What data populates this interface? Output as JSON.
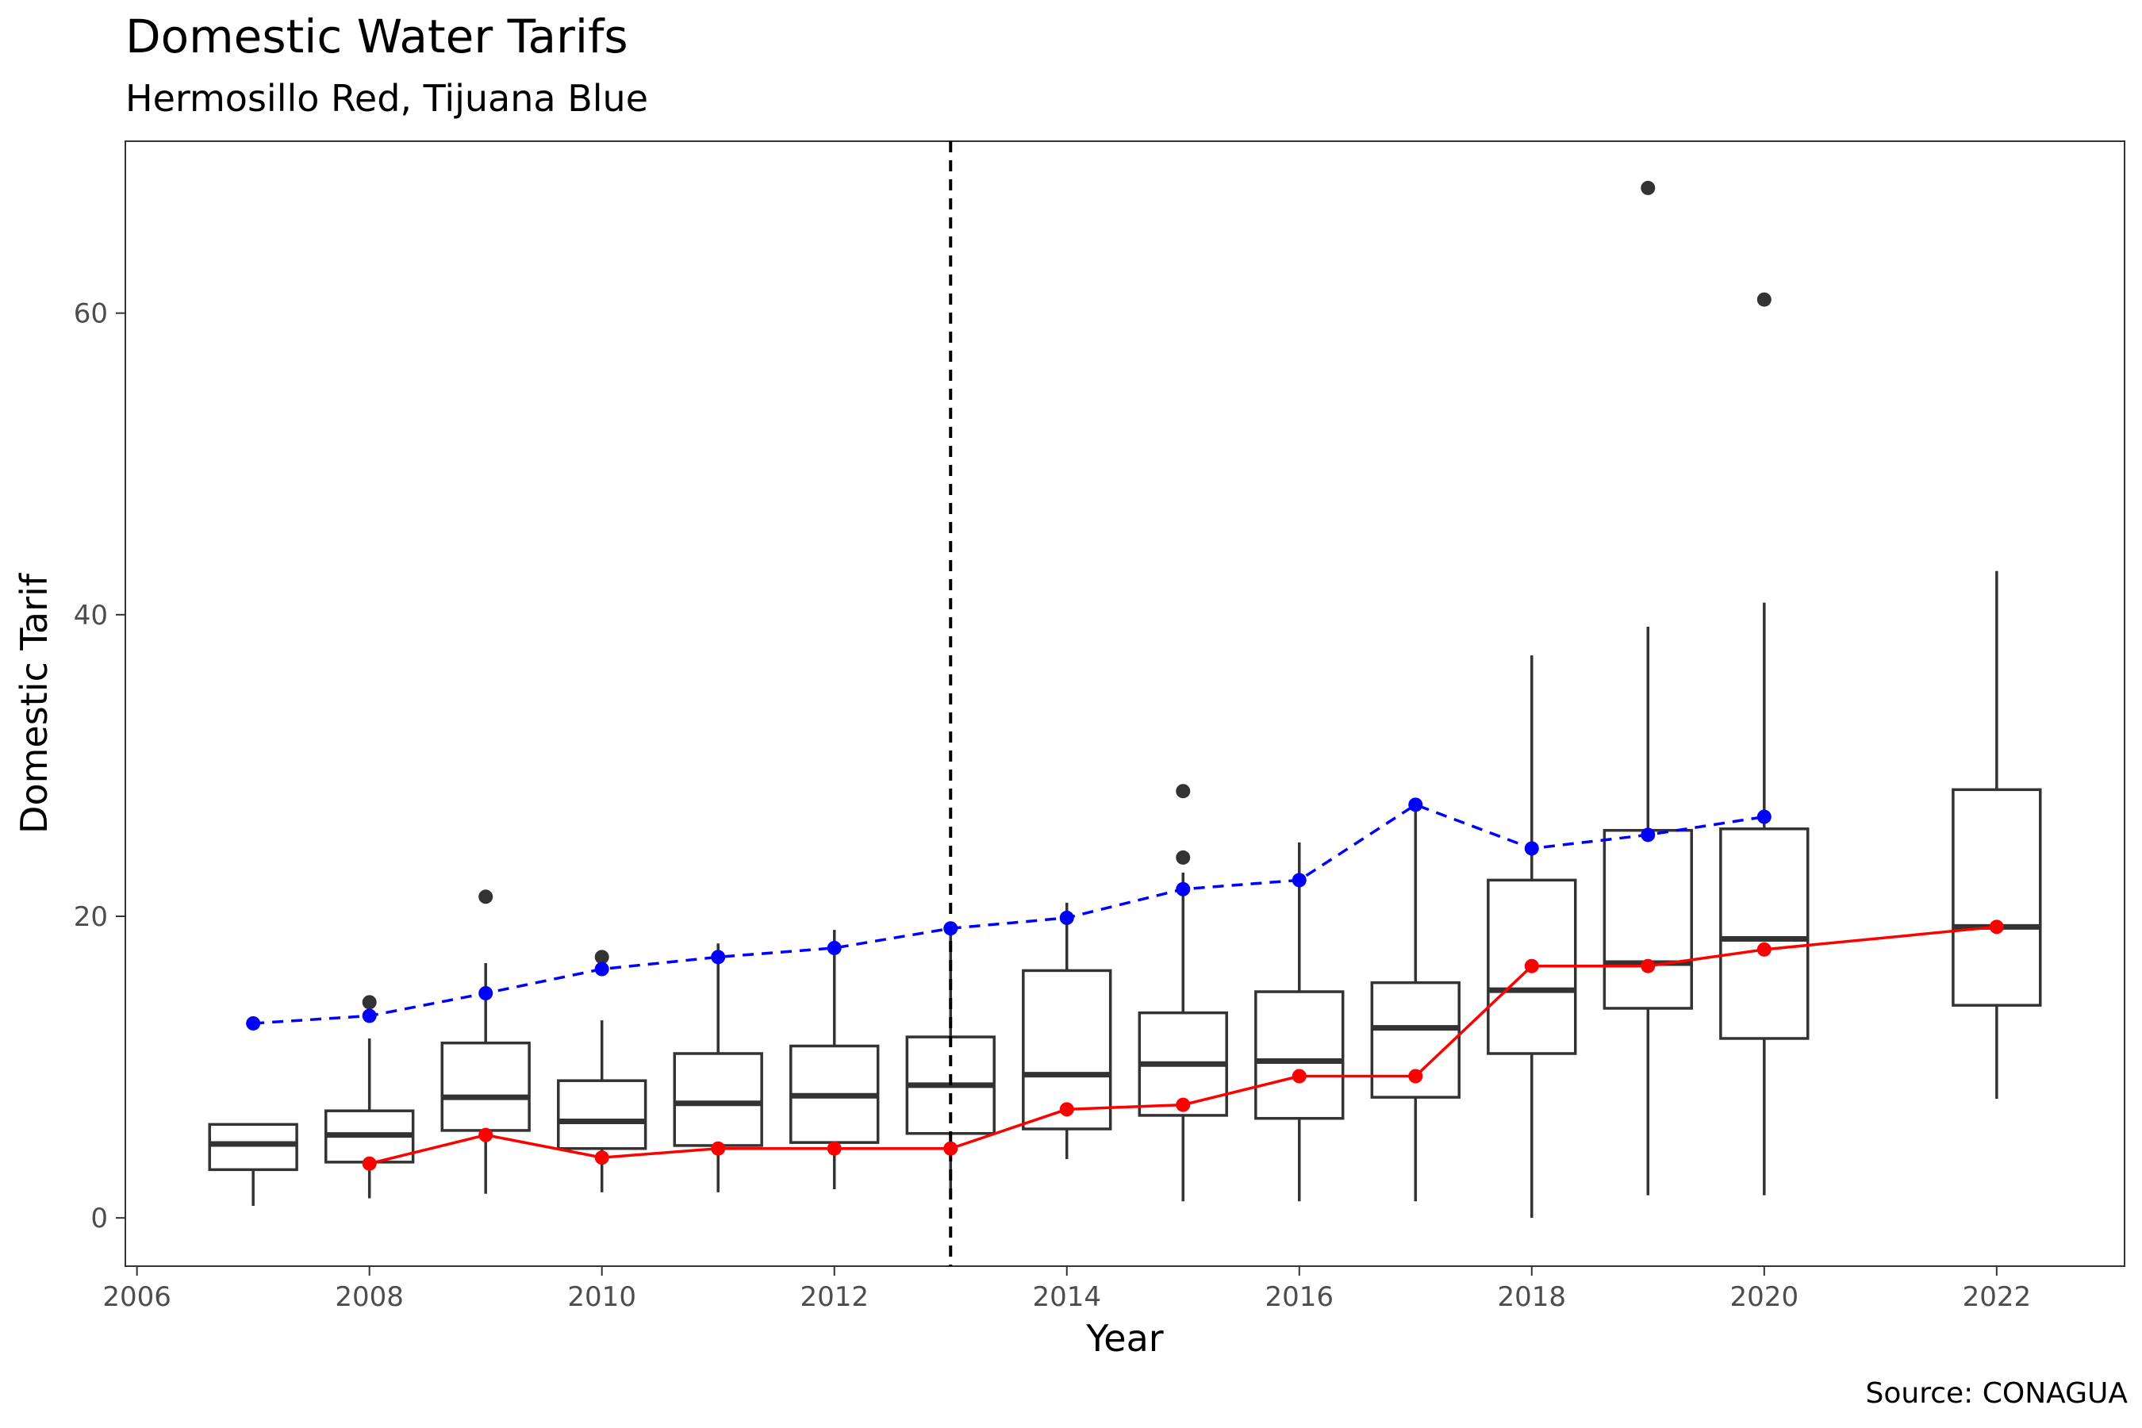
{
  "chart_data": {
    "type": "box",
    "title": "Domestic Water Tarifs",
    "subtitle": "Hermosillo Red, Tijuana Blue",
    "xlabel": "Year",
    "ylabel": "Domestic Tarif",
    "caption": "Source: CONAGUA",
    "xlim": [
      2005.9,
      2023.1
    ],
    "ylim": [
      -3.2,
      71.4
    ],
    "x_ticks": [
      2006,
      2008,
      2010,
      2012,
      2014,
      2016,
      2018,
      2020,
      2022
    ],
    "y_ticks": [
      0,
      20,
      40,
      60
    ],
    "grid": false,
    "vline": {
      "x": 2013,
      "style": "dashed",
      "color": "#000000"
    },
    "box_color": "#333333",
    "boxes": [
      {
        "x": 2007,
        "whisker_low": 0.8,
        "q1": 3.2,
        "median": 4.9,
        "q3": 6.2,
        "whisker_high": 6.2,
        "outliers": []
      },
      {
        "x": 2008,
        "whisker_low": 1.3,
        "q1": 3.7,
        "median": 5.5,
        "q3": 7.1,
        "whisker_high": 11.9,
        "outliers": [
          14.3
        ]
      },
      {
        "x": 2009,
        "whisker_low": 1.6,
        "q1": 5.8,
        "median": 8.0,
        "q3": 11.6,
        "whisker_high": 16.9,
        "outliers": [
          21.3
        ]
      },
      {
        "x": 2010,
        "whisker_low": 1.7,
        "q1": 4.6,
        "median": 6.4,
        "q3": 9.1,
        "whisker_high": 13.1,
        "outliers": [
          17.3
        ]
      },
      {
        "x": 2011,
        "whisker_low": 1.7,
        "q1": 4.8,
        "median": 7.6,
        "q3": 10.9,
        "whisker_high": 18.2,
        "outliers": []
      },
      {
        "x": 2012,
        "whisker_low": 1.9,
        "q1": 5.0,
        "median": 8.1,
        "q3": 11.4,
        "whisker_high": 19.1,
        "outliers": []
      },
      {
        "x": 2013,
        "whisker_low": 1.9,
        "q1": 5.6,
        "median": 8.8,
        "q3": 12.0,
        "whisker_high": 19.1,
        "outliers": []
      },
      {
        "x": 2014,
        "whisker_low": 3.9,
        "q1": 5.9,
        "median": 9.5,
        "q3": 16.4,
        "whisker_high": 20.9,
        "outliers": []
      },
      {
        "x": 2015,
        "whisker_low": 1.1,
        "q1": 6.8,
        "median": 10.2,
        "q3": 13.6,
        "whisker_high": 22.9,
        "outliers": [
          23.9,
          28.3
        ]
      },
      {
        "x": 2016,
        "whisker_low": 1.1,
        "q1": 6.6,
        "median": 10.4,
        "q3": 15.0,
        "whisker_high": 24.9,
        "outliers": []
      },
      {
        "x": 2017,
        "whisker_low": 1.1,
        "q1": 8.0,
        "median": 12.6,
        "q3": 15.6,
        "whisker_high": 27.4,
        "outliers": []
      },
      {
        "x": 2018,
        "whisker_low": 0.0,
        "q1": 10.9,
        "median": 15.1,
        "q3": 22.4,
        "whisker_high": 37.3,
        "outliers": []
      },
      {
        "x": 2019,
        "whisker_low": 1.5,
        "q1": 13.9,
        "median": 16.9,
        "q3": 25.7,
        "whisker_high": 39.2,
        "outliers": [
          68.3
        ]
      },
      {
        "x": 2020,
        "whisker_low": 1.5,
        "q1": 11.9,
        "median": 18.5,
        "q3": 25.8,
        "whisker_high": 40.8,
        "outliers": [
          60.9
        ]
      },
      {
        "x": 2022,
        "whisker_low": 7.9,
        "q1": 14.1,
        "median": 19.3,
        "q3": 28.4,
        "whisker_high": 42.9,
        "outliers": []
      }
    ],
    "series": [
      {
        "color": "#0000ff",
        "line": "dashed",
        "points": [
          [
            2007,
            12.9
          ],
          [
            2008,
            13.4
          ],
          [
            2009,
            14.9
          ],
          [
            2010,
            16.5
          ],
          [
            2011,
            17.3
          ],
          [
            2012,
            17.9
          ],
          [
            2013,
            19.2
          ],
          [
            2014,
            19.9
          ],
          [
            2015,
            21.8
          ],
          [
            2016,
            22.4
          ],
          [
            2017,
            27.4
          ],
          [
            2018,
            24.5
          ],
          [
            2019,
            25.4
          ],
          [
            2020,
            26.6
          ]
        ]
      },
      {
        "color": "#ff0000",
        "line": "solid",
        "points": [
          [
            2008,
            3.6
          ],
          [
            2009,
            5.5
          ],
          [
            2010,
            4.0
          ],
          [
            2011,
            4.6
          ],
          [
            2012,
            4.6
          ],
          [
            2013,
            4.6
          ],
          [
            2014,
            7.2
          ],
          [
            2015,
            7.5
          ],
          [
            2016,
            9.4
          ],
          [
            2017,
            9.4
          ],
          [
            2018,
            16.7
          ],
          [
            2019,
            16.7
          ],
          [
            2020,
            17.8
          ],
          [
            2022,
            19.3
          ]
        ]
      }
    ]
  }
}
